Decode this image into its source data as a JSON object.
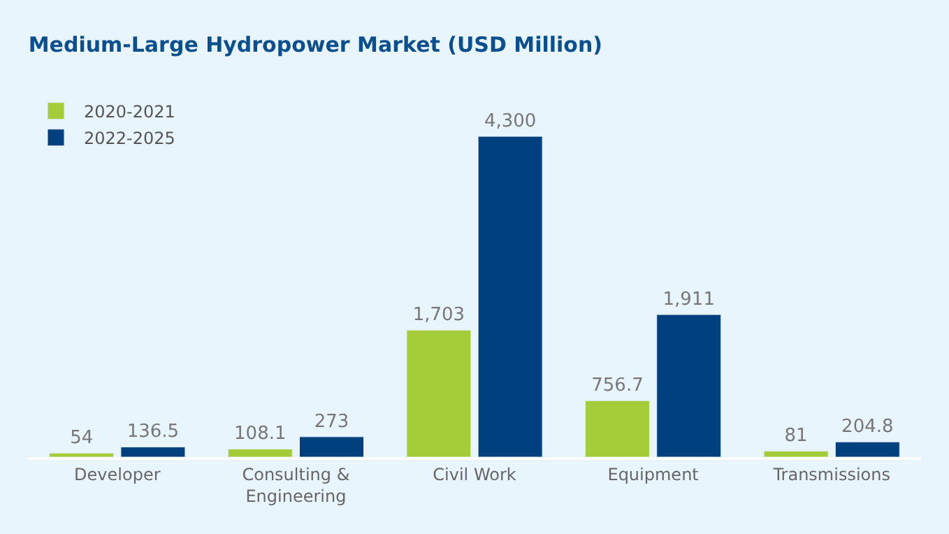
{
  "chart_data": {
    "type": "bar",
    "title": "Medium-Large Hydropower Market (USD Million)",
    "categories": [
      "Developer",
      "Consulting &\nEngineering",
      "Civil Work",
      "Equipment",
      "Transmissions"
    ],
    "series": [
      {
        "name": "2020-2021",
        "color": "#a5cd39",
        "values": [
          54,
          108.1,
          1703,
          756.7,
          81
        ],
        "value_labels": [
          "54",
          "108.1",
          "1,703",
          "756.7",
          "81"
        ]
      },
      {
        "name": "2022-2025",
        "color": "#00407f",
        "values": [
          136.5,
          273,
          4300,
          1911,
          204.8
        ],
        "value_labels": [
          "136.5",
          "273",
          "4,300",
          "1,911",
          "204.8"
        ]
      }
    ],
    "legend": "top left",
    "grid": false
  }
}
